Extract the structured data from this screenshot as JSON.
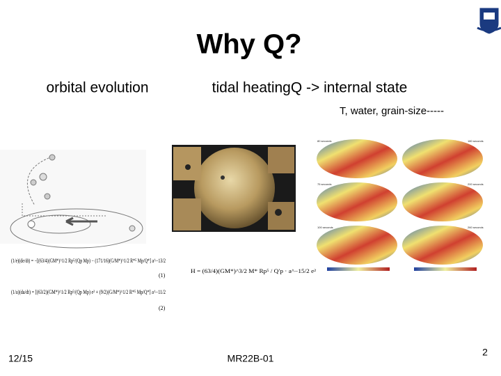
{
  "title": "Why Q?",
  "left_heading": "orbital evolution",
  "right_heading": "tidal heatingQ -> internal state",
  "right_subheading": "T, water, grain-size-----",
  "equations": [
    {
      "text": "(1/e)(de/dt) = −[(63/4)(GM*)^1/2 Rp⁵/(Qp Mp) − (171/16)(G/M*)^1/2 R*⁵ Mp/Q*] a^−13/2",
      "number": "(1)"
    },
    {
      "text": "(1/a)(da/dt) = [(63/2)(GM*)^1/2 Rp⁵/(Qp Mp) e² + (9/2)(G/M*)^1/2 R*⁵ Mp/Q*] a^−11/2",
      "number": "(2)"
    }
  ],
  "heating_equation": "H = (63/4)(GM*)^3/2 M* Rp⁵ / Q′p · a^−15/2 e²",
  "map_labels": [
    "80 seconds",
    "180 seconds",
    "75 seconds",
    "200 seconds",
    "100 seconds",
    "260 seconds"
  ],
  "footer": {
    "date": "12/15",
    "center": "MR22B-01",
    "page": "2"
  }
}
